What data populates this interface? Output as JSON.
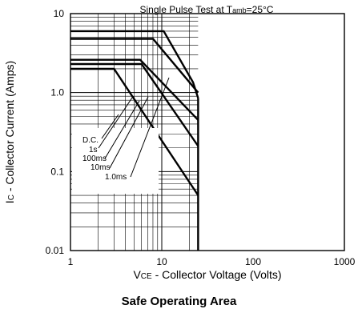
{
  "chart_data": {
    "type": "line",
    "title": "Single Pulse Test at Tamb=25°C",
    "title_parts": {
      "prefix": "Single Pulse Test at T",
      "subscript": "amb",
      "suffix": "=25°C"
    },
    "caption": "Safe Operating Area",
    "xlabel": "VCE - Collector Voltage (Volts)",
    "xlabel_parts": {
      "prefix": "V",
      "subscript": "CE",
      "suffix": " - Collector Voltage (Volts)"
    },
    "ylabel": "IC - Collector Current (Amps)",
    "ylabel_parts": {
      "prefix": "I",
      "subscript": "C",
      "suffix": " - Collector Current (Amps)"
    },
    "x_scale": "log",
    "y_scale": "log",
    "xlim": [
      1,
      1000
    ],
    "ylim": [
      0.01,
      10
    ],
    "x_ticks": [
      1,
      10,
      100,
      1000
    ],
    "x_tick_labels": [
      "1",
      "10",
      "100",
      "1000"
    ],
    "y_ticks": [
      0.01,
      0.1,
      1.0,
      10
    ],
    "y_tick_labels": [
      "0.01",
      "0.1",
      "1.0",
      "10"
    ],
    "grid": true,
    "grid_range_x": [
      1,
      25
    ],
    "legend_placement": "inside lower-left",
    "series": [
      {
        "name": "1.0ms",
        "x": [
          1,
          10.5,
          22,
          25
        ],
        "y": [
          6.0,
          6.0,
          1.35,
          0.85
        ]
      },
      {
        "name": "10ms",
        "x": [
          1,
          8,
          25
        ],
        "y": [
          4.8,
          4.8,
          1.0
        ]
      },
      {
        "name": "100ms",
        "x": [
          1,
          5.8,
          25
        ],
        "y": [
          2.6,
          2.6,
          0.45
        ]
      },
      {
        "name": "1s",
        "x": [
          1,
          6.0,
          25
        ],
        "y": [
          2.3,
          2.3,
          0.21
        ]
      },
      {
        "name": "D.C.",
        "x": [
          1,
          3.0,
          25
        ],
        "y": [
          2.0,
          2.0,
          0.05
        ]
      }
    ],
    "limit_line": {
      "x": 25,
      "y": [
        0.01,
        0.85
      ]
    }
  }
}
